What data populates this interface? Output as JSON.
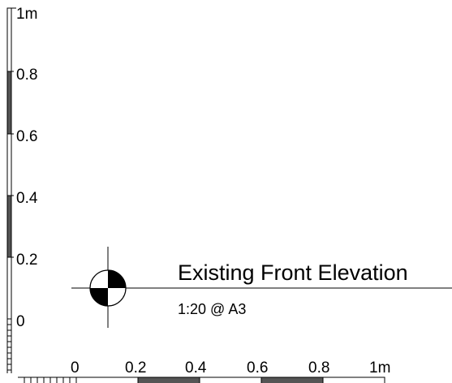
{
  "vertical_scale": {
    "ticks": [
      "1m",
      "0.8",
      "0.6",
      "0.4",
      "0.2",
      "0"
    ],
    "segments": [
      "light",
      "dark",
      "light",
      "dark",
      "light"
    ]
  },
  "horizontal_scale": {
    "ticks": [
      "0",
      "0.2",
      "0.4",
      "0.6",
      "0.8",
      "1m"
    ],
    "segments": [
      "light",
      "dark",
      "light",
      "dark",
      "light"
    ]
  },
  "title_block": {
    "title": "Existing Front Elevation",
    "scale_note": "1:20 @ A3",
    "marker_icon": "level-datum-marker-icon"
  },
  "colors": {
    "dark_segment": "#555555",
    "light_segment": "#ffffff",
    "line": "#000000"
  }
}
